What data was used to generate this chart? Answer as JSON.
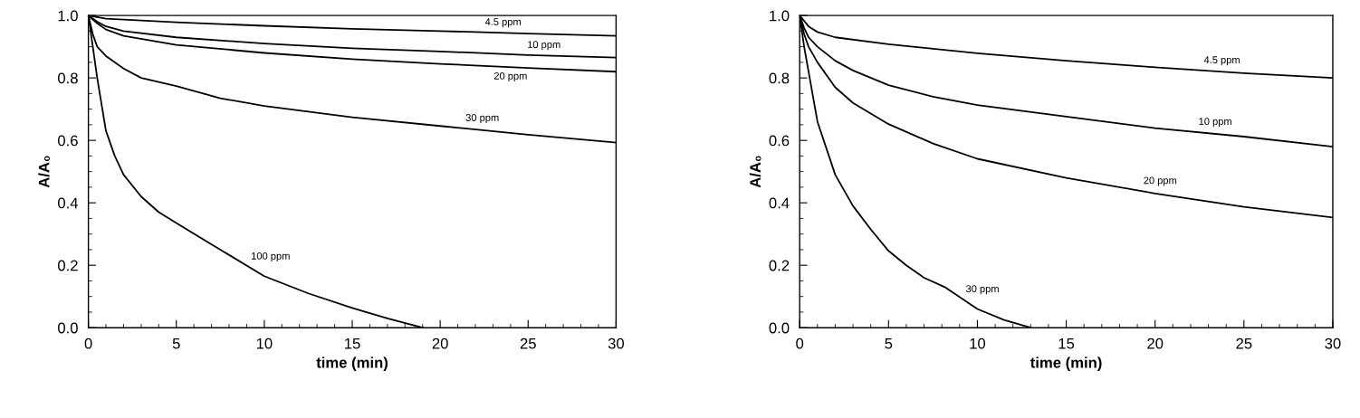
{
  "chart_data": [
    {
      "type": "line",
      "xlabel": "time (min)",
      "ylabel": "A/A₀",
      "xlim": [
        0,
        30
      ],
      "ylim": [
        0,
        1
      ],
      "xticks": [
        0,
        {
          "value": 1,
          "label": null
        },
        {
          "value": 2,
          "label": null
        },
        {
          "value": 3,
          "label": null
        },
        {
          "value": 4,
          "label": null
        },
        5,
        {
          "value": 6,
          "label": null
        },
        {
          "value": 7,
          "label": null
        },
        {
          "value": 8,
          "label": null
        },
        {
          "value": 9,
          "label": null
        },
        10,
        {
          "value": 11,
          "label": null
        },
        {
          "value": 12,
          "label": null
        },
        {
          "value": 13,
          "label": null
        },
        {
          "value": 14,
          "label": null
        },
        15,
        {
          "value": 16,
          "label": null
        },
        {
          "value": 17,
          "label": null
        },
        {
          "value": 18,
          "label": null
        },
        {
          "value": 19,
          "label": null
        },
        20,
        {
          "value": 21,
          "label": null
        },
        {
          "value": 22,
          "label": null
        },
        {
          "value": 23,
          "label": null
        },
        {
          "value": 24,
          "label": null
        },
        25,
        {
          "value": 26,
          "label": null
        },
        {
          "value": 27,
          "label": null
        },
        {
          "value": 28,
          "label": null
        },
        {
          "value": 29,
          "label": null
        },
        30
      ],
      "yticks": [
        {
          "value": 0,
          "label": "0.0"
        },
        {
          "value": 0.05,
          "label": null
        },
        {
          "value": 0.1,
          "label": null
        },
        {
          "value": 0.15,
          "label": null
        },
        0.2,
        {
          "value": 0.25,
          "label": null
        },
        {
          "value": 0.3,
          "label": null
        },
        {
          "value": 0.35,
          "label": null
        },
        0.4,
        {
          "value": 0.45,
          "label": null
        },
        {
          "value": 0.5,
          "label": null
        },
        {
          "value": 0.55,
          "label": null
        },
        0.6,
        {
          "value": 0.65,
          "label": null
        },
        {
          "value": 0.7,
          "label": null
        },
        {
          "value": 0.75,
          "label": null
        },
        0.8,
        {
          "value": 0.85,
          "label": null
        },
        {
          "value": 0.9,
          "label": null
        },
        {
          "value": 0.95,
          "label": null
        },
        {
          "value": 1,
          "label": "1.0"
        }
      ],
      "grid": false,
      "marker": "none",
      "line_style": "solid",
      "series": [
        {
          "color": "#000000",
          "x": [
            0,
            1,
            2,
            5,
            10,
            15,
            20,
            25,
            30
          ],
          "values": [
            1,
            0.99,
            0.987,
            0.978,
            0.967,
            0.957,
            0.95,
            0.942,
            0.935
          ]
        },
        {
          "color": "#000000",
          "x": [
            0,
            0.5,
            1,
            2,
            5,
            10,
            15,
            20,
            25,
            30
          ],
          "values": [
            1,
            0.98,
            0.965,
            0.95,
            0.93,
            0.91,
            0.895,
            0.885,
            0.873,
            0.865
          ]
        },
        {
          "color": "#000000",
          "x": [
            0,
            0.5,
            1,
            2,
            5,
            10,
            15,
            20,
            25,
            30
          ],
          "values": [
            1,
            0.975,
            0.955,
            0.935,
            0.906,
            0.88,
            0.86,
            0.845,
            0.832,
            0.82
          ]
        },
        {
          "color": "#000000",
          "x": [
            0,
            0.25,
            0.5,
            1,
            2,
            3,
            5,
            7.5,
            10,
            15,
            20,
            25,
            30
          ],
          "values": [
            1,
            0.94,
            0.9,
            0.87,
            0.83,
            0.8,
            0.774,
            0.735,
            0.71,
            0.674,
            0.646,
            0.618,
            0.593
          ]
        },
        {
          "color": "#000000",
          "x": [
            0,
            0.25,
            0.5,
            1,
            1.5,
            2,
            3,
            4,
            5,
            7.5,
            10,
            12.5,
            15,
            17,
            19
          ],
          "values": [
            1,
            0.9,
            0.8,
            0.63,
            0.55,
            0.49,
            0.42,
            0.37,
            0.335,
            0.25,
            0.165,
            0.11,
            0.063,
            0.03,
            0
          ]
        }
      ],
      "annotations": [
        {
          "text": "4.5 ppm",
          "x": 22.4,
          "y": 0.946
        },
        {
          "text": "10 ppm",
          "x": 24.8,
          "y": 0.873
        },
        {
          "text": "20 ppm",
          "x": 24.0,
          "y": 0.835
        },
        {
          "text": "30 ppm",
          "x": 21.3,
          "y": 0.639
        },
        {
          "text": "100 ppm",
          "x": 9.1,
          "y": 0.196
        }
      ]
    },
    {
      "type": "line",
      "xlabel": "time (min)",
      "ylabel": "A/A₀",
      "xlim": [
        0,
        30
      ],
      "ylim": [
        0,
        1
      ],
      "xticks": [
        0,
        {
          "value": 1,
          "label": null
        },
        {
          "value": 2,
          "label": null
        },
        {
          "value": 3,
          "label": null
        },
        {
          "value": 4,
          "label": null
        },
        5,
        {
          "value": 6,
          "label": null
        },
        {
          "value": 7,
          "label": null
        },
        {
          "value": 8,
          "label": null
        },
        {
          "value": 9,
          "label": null
        },
        10,
        {
          "value": 11,
          "label": null
        },
        {
          "value": 12,
          "label": null
        },
        {
          "value": 13,
          "label": null
        },
        {
          "value": 14,
          "label": null
        },
        15,
        {
          "value": 16,
          "label": null
        },
        {
          "value": 17,
          "label": null
        },
        {
          "value": 18,
          "label": null
        },
        {
          "value": 19,
          "label": null
        },
        20,
        {
          "value": 21,
          "label": null
        },
        {
          "value": 22,
          "label": null
        },
        {
          "value": 23,
          "label": null
        },
        {
          "value": 24,
          "label": null
        },
        25,
        {
          "value": 26,
          "label": null
        },
        {
          "value": 27,
          "label": null
        },
        {
          "value": 28,
          "label": null
        },
        {
          "value": 29,
          "label": null
        },
        30
      ],
      "yticks": [
        {
          "value": 0,
          "label": "0.0"
        },
        {
          "value": 0.05,
          "label": null
        },
        {
          "value": 0.1,
          "label": null
        },
        {
          "value": 0.15,
          "label": null
        },
        0.2,
        {
          "value": 0.25,
          "label": null
        },
        {
          "value": 0.3,
          "label": null
        },
        {
          "value": 0.35,
          "label": null
        },
        0.4,
        {
          "value": 0.45,
          "label": null
        },
        {
          "value": 0.5,
          "label": null
        },
        {
          "value": 0.55,
          "label": null
        },
        0.6,
        {
          "value": 0.65,
          "label": null
        },
        {
          "value": 0.7,
          "label": null
        },
        {
          "value": 0.75,
          "label": null
        },
        0.8,
        {
          "value": 0.85,
          "label": null
        },
        {
          "value": 0.9,
          "label": null
        },
        {
          "value": 0.95,
          "label": null
        },
        {
          "value": 1,
          "label": "1.0"
        }
      ],
      "grid": false,
      "marker": "none",
      "line_style": "solid",
      "series": [
        {
          "color": "#000000",
          "x": [
            0,
            0.5,
            1,
            2,
            5,
            10,
            15,
            20,
            25,
            30
          ],
          "values": [
            1,
            0.965,
            0.947,
            0.93,
            0.908,
            0.879,
            0.855,
            0.834,
            0.815,
            0.8
          ]
        },
        {
          "color": "#000000",
          "x": [
            0,
            0.25,
            0.5,
            1,
            2,
            3,
            5,
            7.5,
            10,
            15,
            20,
            25,
            30
          ],
          "values": [
            1,
            0.96,
            0.93,
            0.9,
            0.855,
            0.824,
            0.777,
            0.74,
            0.713,
            0.676,
            0.639,
            0.612,
            0.58
          ]
        },
        {
          "color": "#000000",
          "x": [
            0,
            0.25,
            0.5,
            1,
            2,
            3,
            5,
            7.5,
            10,
            15,
            20,
            25,
            30
          ],
          "values": [
            1,
            0.94,
            0.9,
            0.85,
            0.77,
            0.72,
            0.652,
            0.59,
            0.541,
            0.48,
            0.43,
            0.387,
            0.353
          ]
        },
        {
          "color": "#000000",
          "x": [
            0,
            0.25,
            0.5,
            1,
            2,
            3,
            4,
            5,
            6,
            7,
            8.2,
            10,
            11.5,
            13
          ],
          "values": [
            1,
            0.9,
            0.82,
            0.66,
            0.49,
            0.39,
            0.315,
            0.246,
            0.2,
            0.16,
            0.129,
            0.06,
            0.025,
            0
          ]
        }
      ],
      "annotations": [
        {
          "text": "4.5 ppm",
          "x": 22.6,
          "y": 0.824
        },
        {
          "text": "10 ppm",
          "x": 22.3,
          "y": 0.627
        },
        {
          "text": "20 ppm",
          "x": 19.2,
          "y": 0.438
        },
        {
          "text": "30 ppm",
          "x": 9.2,
          "y": 0.091
        }
      ]
    }
  ]
}
